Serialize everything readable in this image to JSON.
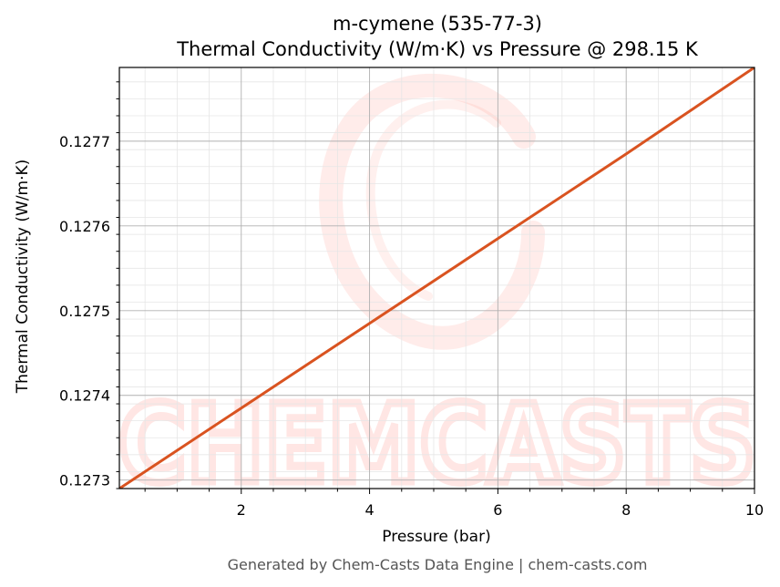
{
  "chart_data": {
    "type": "line",
    "title": "m-cymene (535-77-3)",
    "subtitle": "Thermal Conductivity (W/m·K) vs Pressure @ 298.15 K",
    "xlabel": "Pressure (bar)",
    "ylabel": "Thermal Conductivity (W/m·K)",
    "xlim": [
      0.1,
      10
    ],
    "ylim": [
      0.12729,
      0.127787
    ],
    "x_ticks": [
      2,
      4,
      6,
      8,
      10
    ],
    "x_tick_labels": [
      "2",
      "4",
      "6",
      "8",
      "10"
    ],
    "y_ticks": [
      0.1273,
      0.1274,
      0.1275,
      0.1276,
      0.1277
    ],
    "y_tick_labels": [
      "0.1273",
      "0.1274",
      "0.1275",
      "0.1276",
      "0.1277"
    ],
    "grid": true,
    "series": [
      {
        "color": "#d95320",
        "x": [
          0.1,
          2,
          4,
          6,
          8,
          10
        ],
        "y": [
          0.12729,
          0.127385,
          0.127485,
          0.127585,
          0.127685,
          0.127787
        ]
      }
    ]
  },
  "footer": "Generated by Chem-Casts Data Engine | chem-casts.com",
  "watermark": {
    "text": "CHEMCASTS",
    "color": "#ff6b5b"
  },
  "colors": {
    "line": "#d95320",
    "grid_major": "#b0b0b0",
    "grid_minor": "#e6e6e6",
    "watermark": "#ff6b5b"
  }
}
